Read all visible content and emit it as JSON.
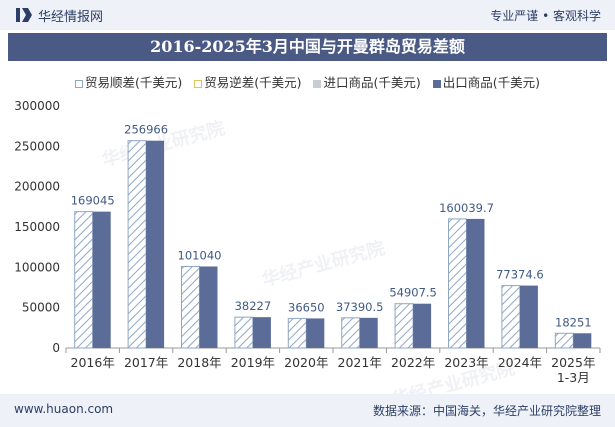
{
  "header": {
    "brand": "华经情报网",
    "slogan": "专业严谨 • 客观科学"
  },
  "chart_data": {
    "type": "bar",
    "title": "2016-2025年3月中国与开曼群岛贸易差额",
    "categories": [
      "2016年",
      "2017年",
      "2018年",
      "2019年",
      "2020年",
      "2021年",
      "2022年",
      "2023年",
      "2024年",
      "2025年\n1-3月"
    ],
    "series": [
      {
        "name": "贸易顺差(千美元)",
        "values": [
          169045,
          256966,
          101040,
          38227,
          36650,
          37390.5,
          54907.5,
          160039.7,
          77374.6,
          18251
        ]
      },
      {
        "name": "贸易逆差(千美元)",
        "values": [
          null,
          null,
          null,
          null,
          null,
          null,
          null,
          null,
          null,
          null
        ]
      },
      {
        "name": "进口商品(千美元)",
        "values": [
          null,
          null,
          null,
          null,
          null,
          null,
          null,
          null,
          null,
          null
        ]
      },
      {
        "name": "出口商品(千美元)",
        "values": [
          169045,
          256966,
          101040,
          38227,
          36650,
          37390.5,
          54907.5,
          160039.7,
          77374.6,
          18251
        ]
      }
    ],
    "data_labels": [
      "169045",
      "256966",
      "101040",
      "38227",
      "36650",
      "37390.5",
      "54907.5",
      "160039.7",
      "77374.6",
      "18251"
    ],
    "yticks": [
      "0",
      "50000",
      "100000",
      "150000",
      "200000",
      "250000",
      "300000"
    ],
    "ylim": [
      0,
      300000
    ],
    "legend_position": "top",
    "grid": false,
    "colors": {
      "surplus_stroke": "#8fa6c4",
      "deficit_stroke": "#e6c15a",
      "import": "#c9ccd3",
      "export": "#5b6c99",
      "label": "#3f5a86"
    }
  },
  "watermark": "华经产业研究院",
  "watermark_url": "www.huaon.com",
  "footer": {
    "site": "www.huaon.com",
    "source": "数据来源：中国海关，华经产业研究院整理"
  }
}
